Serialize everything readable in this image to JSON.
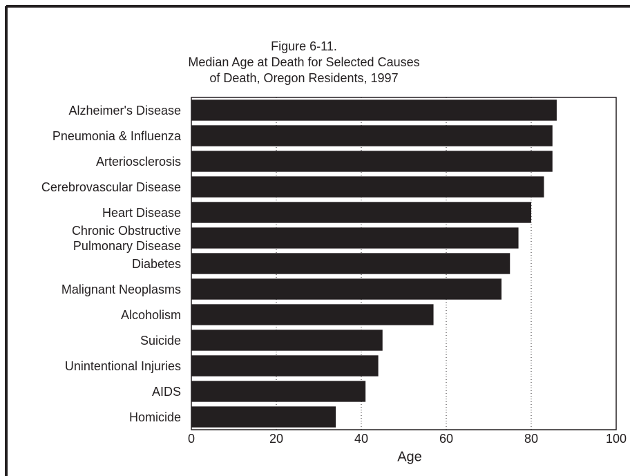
{
  "chart_data": {
    "type": "bar",
    "orientation": "horizontal",
    "title": [
      "Figure 6-11.",
      "Median Age at Death for Selected Causes",
      "of Death, Oregon Residents, 1997"
    ],
    "x_label": "Age",
    "categories": [
      "Alzheimer's Disease",
      "Pneumonia & Influenza",
      "Arteriosclerosis",
      "Cerebrovascular Disease",
      "Heart Disease",
      "Chronic Obstructive\nPulmonary Disease",
      "Diabetes",
      "Malignant Neoplasms",
      "Alcoholism",
      "Suicide",
      "Unintentional Injuries",
      "AIDS",
      "Homicide"
    ],
    "values": [
      86,
      85,
      85,
      83,
      80,
      77,
      75,
      73,
      57,
      45,
      44,
      41,
      34
    ],
    "color": "#231f20",
    "xlim": [
      0,
      100
    ],
    "xticks": [
      0,
      20,
      40,
      60,
      80,
      100
    ],
    "grid": true
  }
}
